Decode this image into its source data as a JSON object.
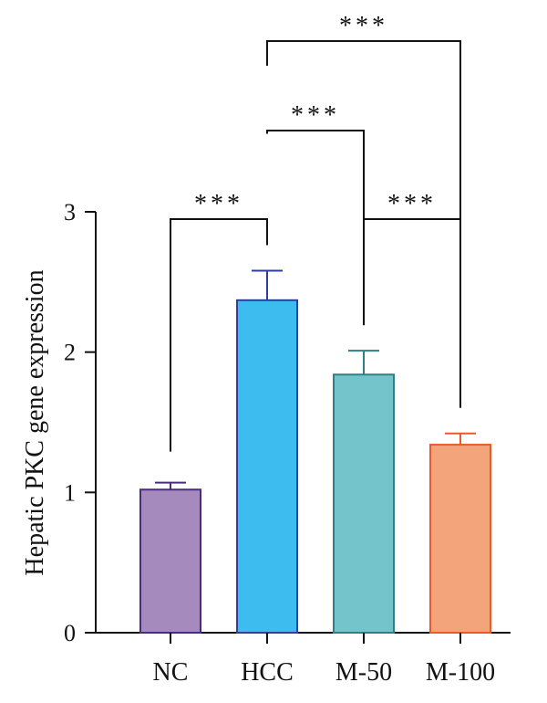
{
  "chart_data": {
    "type": "bar",
    "title": "",
    "xlabel": "",
    "ylabel": "Hepatic PKC gene expression",
    "ylim": [
      0,
      3
    ],
    "yticks": [
      0,
      1,
      2,
      3
    ],
    "categories": [
      "NC",
      "HCC",
      "M-50",
      "M-100"
    ],
    "values": [
      1.02,
      2.37,
      1.84,
      1.34
    ],
    "errors": [
      0.05,
      0.21,
      0.17,
      0.08
    ],
    "colors": {
      "fill": [
        "#a48abd",
        "#3dbdef",
        "#74c4cc",
        "#f4a47a"
      ],
      "edge": [
        "#4a2a82",
        "#2e3f9e",
        "#2f7f86",
        "#e85a2a"
      ],
      "axis": "#111111",
      "bracket": "#111111"
    },
    "significance": [
      {
        "from": "NC",
        "to": "HCC",
        "label": "***"
      },
      {
        "from": "HCC",
        "to": "M-50",
        "label": "***"
      },
      {
        "from": "HCC",
        "to": "M-100",
        "label": "***"
      },
      {
        "from": "M-50",
        "to": "M-100",
        "label": "***"
      }
    ]
  }
}
